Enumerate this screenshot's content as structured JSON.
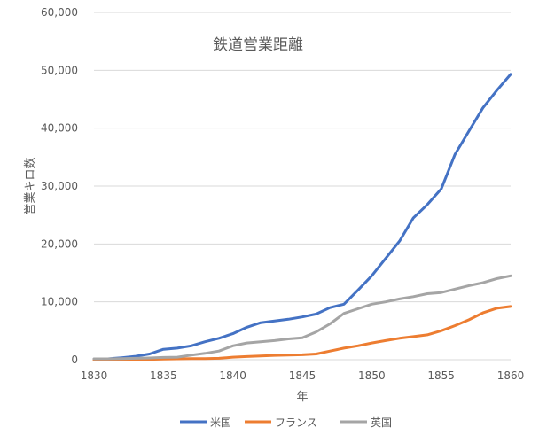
{
  "chart_data": {
    "type": "line",
    "title": "鉄道営業距離",
    "xlabel": "年",
    "ylabel": "営業キロ数",
    "xlim": [
      1830,
      1860
    ],
    "ylim": [
      0,
      60000
    ],
    "x_ticks": [
      "1830",
      "1835",
      "1840",
      "1845",
      "1850",
      "1855",
      "1860"
    ],
    "y_ticks": [
      "0",
      "10,000",
      "20,000",
      "30,000",
      "40,000",
      "50,000",
      "60,000"
    ],
    "grid": true,
    "legend_position": "bottom",
    "x": [
      1830,
      1831,
      1832,
      1833,
      1834,
      1835,
      1836,
      1837,
      1838,
      1839,
      1840,
      1841,
      1842,
      1843,
      1844,
      1845,
      1846,
      1847,
      1848,
      1849,
      1850,
      1851,
      1852,
      1853,
      1854,
      1855,
      1856,
      1857,
      1858,
      1859,
      1860
    ],
    "series": [
      {
        "name": "米国",
        "color": "#4472c4",
        "values": [
          100,
          150,
          350,
          600,
          1000,
          1800,
          2000,
          2400,
          3100,
          3700,
          4500,
          5600,
          6400,
          6700,
          7000,
          7400,
          7900,
          9000,
          9600,
          12000,
          14500,
          17500,
          20500,
          24500,
          26800,
          29500,
          35500,
          39500,
          43500,
          46500,
          49300
        ]
      },
      {
        "name": "フランス",
        "color": "#ed7d31",
        "values": [
          0,
          10,
          20,
          40,
          60,
          100,
          150,
          180,
          200,
          250,
          450,
          550,
          650,
          750,
          800,
          850,
          1000,
          1500,
          2000,
          2400,
          2900,
          3300,
          3700,
          4000,
          4300,
          5000,
          5900,
          6900,
          8100,
          8900,
          9200
        ]
      },
      {
        "name": "英国",
        "color": "#a5a5a5",
        "values": [
          150,
          150,
          200,
          250,
          300,
          400,
          450,
          800,
          1100,
          1500,
          2400,
          2900,
          3100,
          3300,
          3600,
          3800,
          4800,
          6200,
          8000,
          8800,
          9600,
          10000,
          10500,
          10900,
          11400,
          11600,
          12200,
          12800,
          13300,
          14000,
          14500
        ]
      }
    ]
  }
}
